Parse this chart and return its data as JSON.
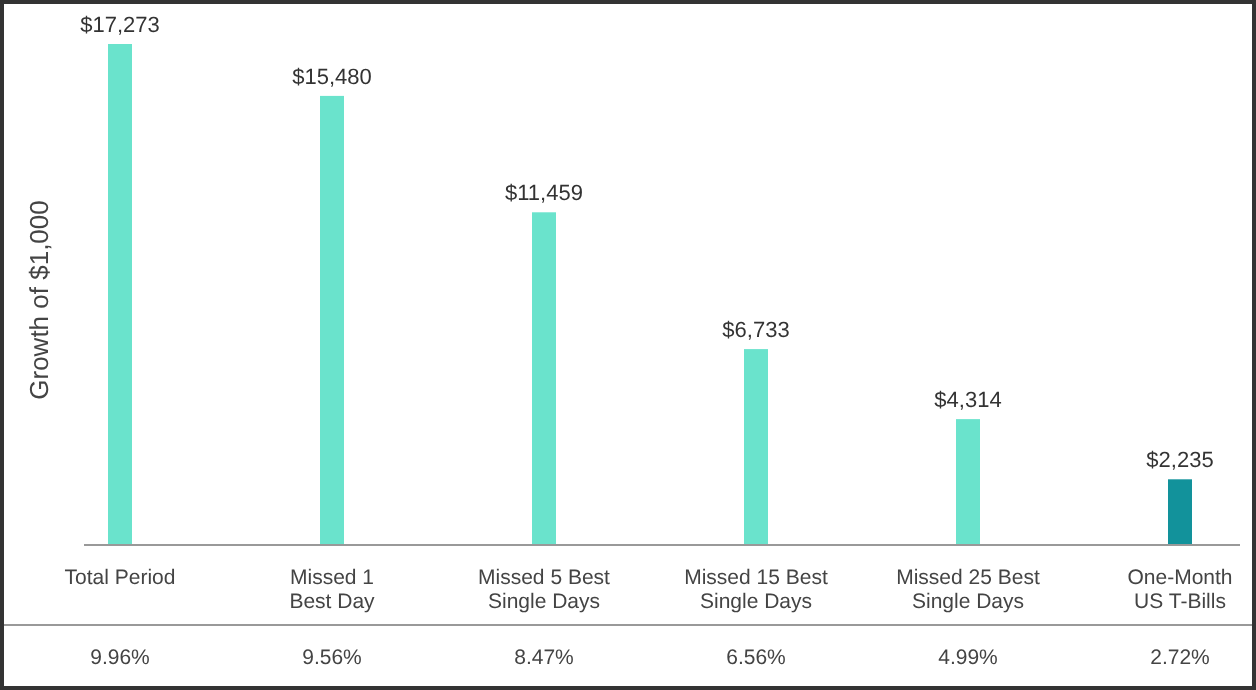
{
  "chart_data": {
    "type": "bar",
    "ylabel": "Growth of $1,000",
    "categories": [
      "Total Period",
      "Missed 1\nBest Day",
      "Missed 5 Best\nSingle Days",
      "Missed 15 Best\nSingle Days",
      "Missed 25 Best\nSingle Days",
      "One-Month\nUS T-Bills"
    ],
    "values": [
      17273,
      15480,
      11459,
      6733,
      4314,
      2235
    ],
    "colors": [
      "#6ae3cc",
      "#6ae3cc",
      "#6ae3cc",
      "#6ae3cc",
      "#6ae3cc",
      "#12929b"
    ],
    "value_labels": [
      "$17,273",
      "$15,480",
      "$11,459",
      "$6,733",
      "$4,314",
      "$2,235"
    ],
    "annotations": [
      "9.96%",
      "9.56%",
      "8.47%",
      "6.56%",
      "4.99%",
      "2.72%"
    ]
  }
}
